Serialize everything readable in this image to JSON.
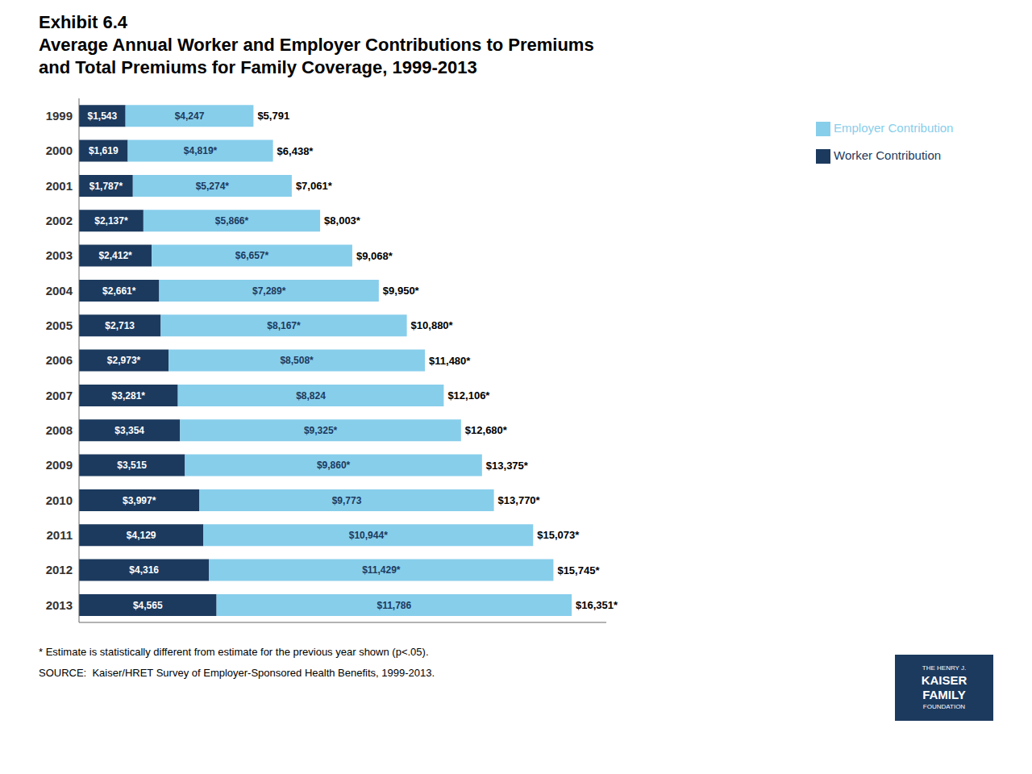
{
  "chart_data": {
    "type": "bar",
    "orientation": "horizontal",
    "stacked": true,
    "data_labels": true,
    "tick_labels": "y",
    "legend": "upper right",
    "grid": false,
    "title": "Exhibit 6.4",
    "subtitle": "Average Annual Worker and Employer Contributions to Premiums\nand Total Premiums for Family Coverage, 1999-2013",
    "categories": [
      "1999",
      "2000",
      "2001",
      "2002",
      "2003",
      "2004",
      "2005",
      "2006",
      "2007",
      "2008",
      "2009",
      "2010",
      "2011",
      "2012",
      "2013"
    ],
    "series": [
      {
        "name": "Worker Contribution",
        "color": "#1c3a5e",
        "values": [
          1543,
          1619,
          1787,
          2137,
          2412,
          2661,
          2713,
          2973,
          3281,
          3354,
          3515,
          3997,
          4129,
          4316,
          4565
        ],
        "value_labels": [
          "$1,543",
          "$1,619",
          "$1,787*",
          "$2,137*",
          "$2,412*",
          "$2,661*",
          "$2,713",
          "$2,973*",
          "$3,281*",
          "$3,354",
          "$3,515",
          "$3,997*",
          "$4,129",
          "$4,316",
          "$4,565"
        ]
      },
      {
        "name": "Employer Contribution",
        "color": "#87ceeb",
        "values": [
          4247,
          4819,
          5274,
          5866,
          6657,
          7289,
          8167,
          8508,
          8824,
          9325,
          9860,
          9773,
          10944,
          11429,
          11786
        ],
        "value_labels": [
          "$4,247",
          "$4,819*",
          "$5,274*",
          "$5,866*",
          "$6,657*",
          "$7,289*",
          "$8,167*",
          "$8,508*",
          "$8,824",
          "$9,325*",
          "$9,860*",
          "$9,773",
          "$10,944*",
          "$11,429*",
          "$11,786"
        ]
      }
    ],
    "totals": [
      5791,
      6438,
      7061,
      8003,
      9068,
      9950,
      10880,
      11480,
      12106,
      12680,
      13375,
      13770,
      15073,
      15745,
      16351
    ],
    "total_labels": [
      "$5,791",
      "$6,438*",
      "$7,061*",
      "$8,003*",
      "$9,068*",
      "$9,950*",
      "$10,880*",
      "$11,480*",
      "$12,106*",
      "$12,680*",
      "$13,375*",
      "$13,770*",
      "$15,073*",
      "$15,745*",
      "$16,351*"
    ],
    "xlim": [
      0,
      17500
    ],
    "annotations": [
      "* Estimate is statistically different from estimate for the previous year shown (p<.05).",
      "SOURCE:  Kaiser/HRET Survey of Employer-Sponsored Health Benefits, 1999-2013.",
      "THE HENRY J.",
      "KAISER",
      "FAMILY",
      "FOUNDATION"
    ]
  }
}
